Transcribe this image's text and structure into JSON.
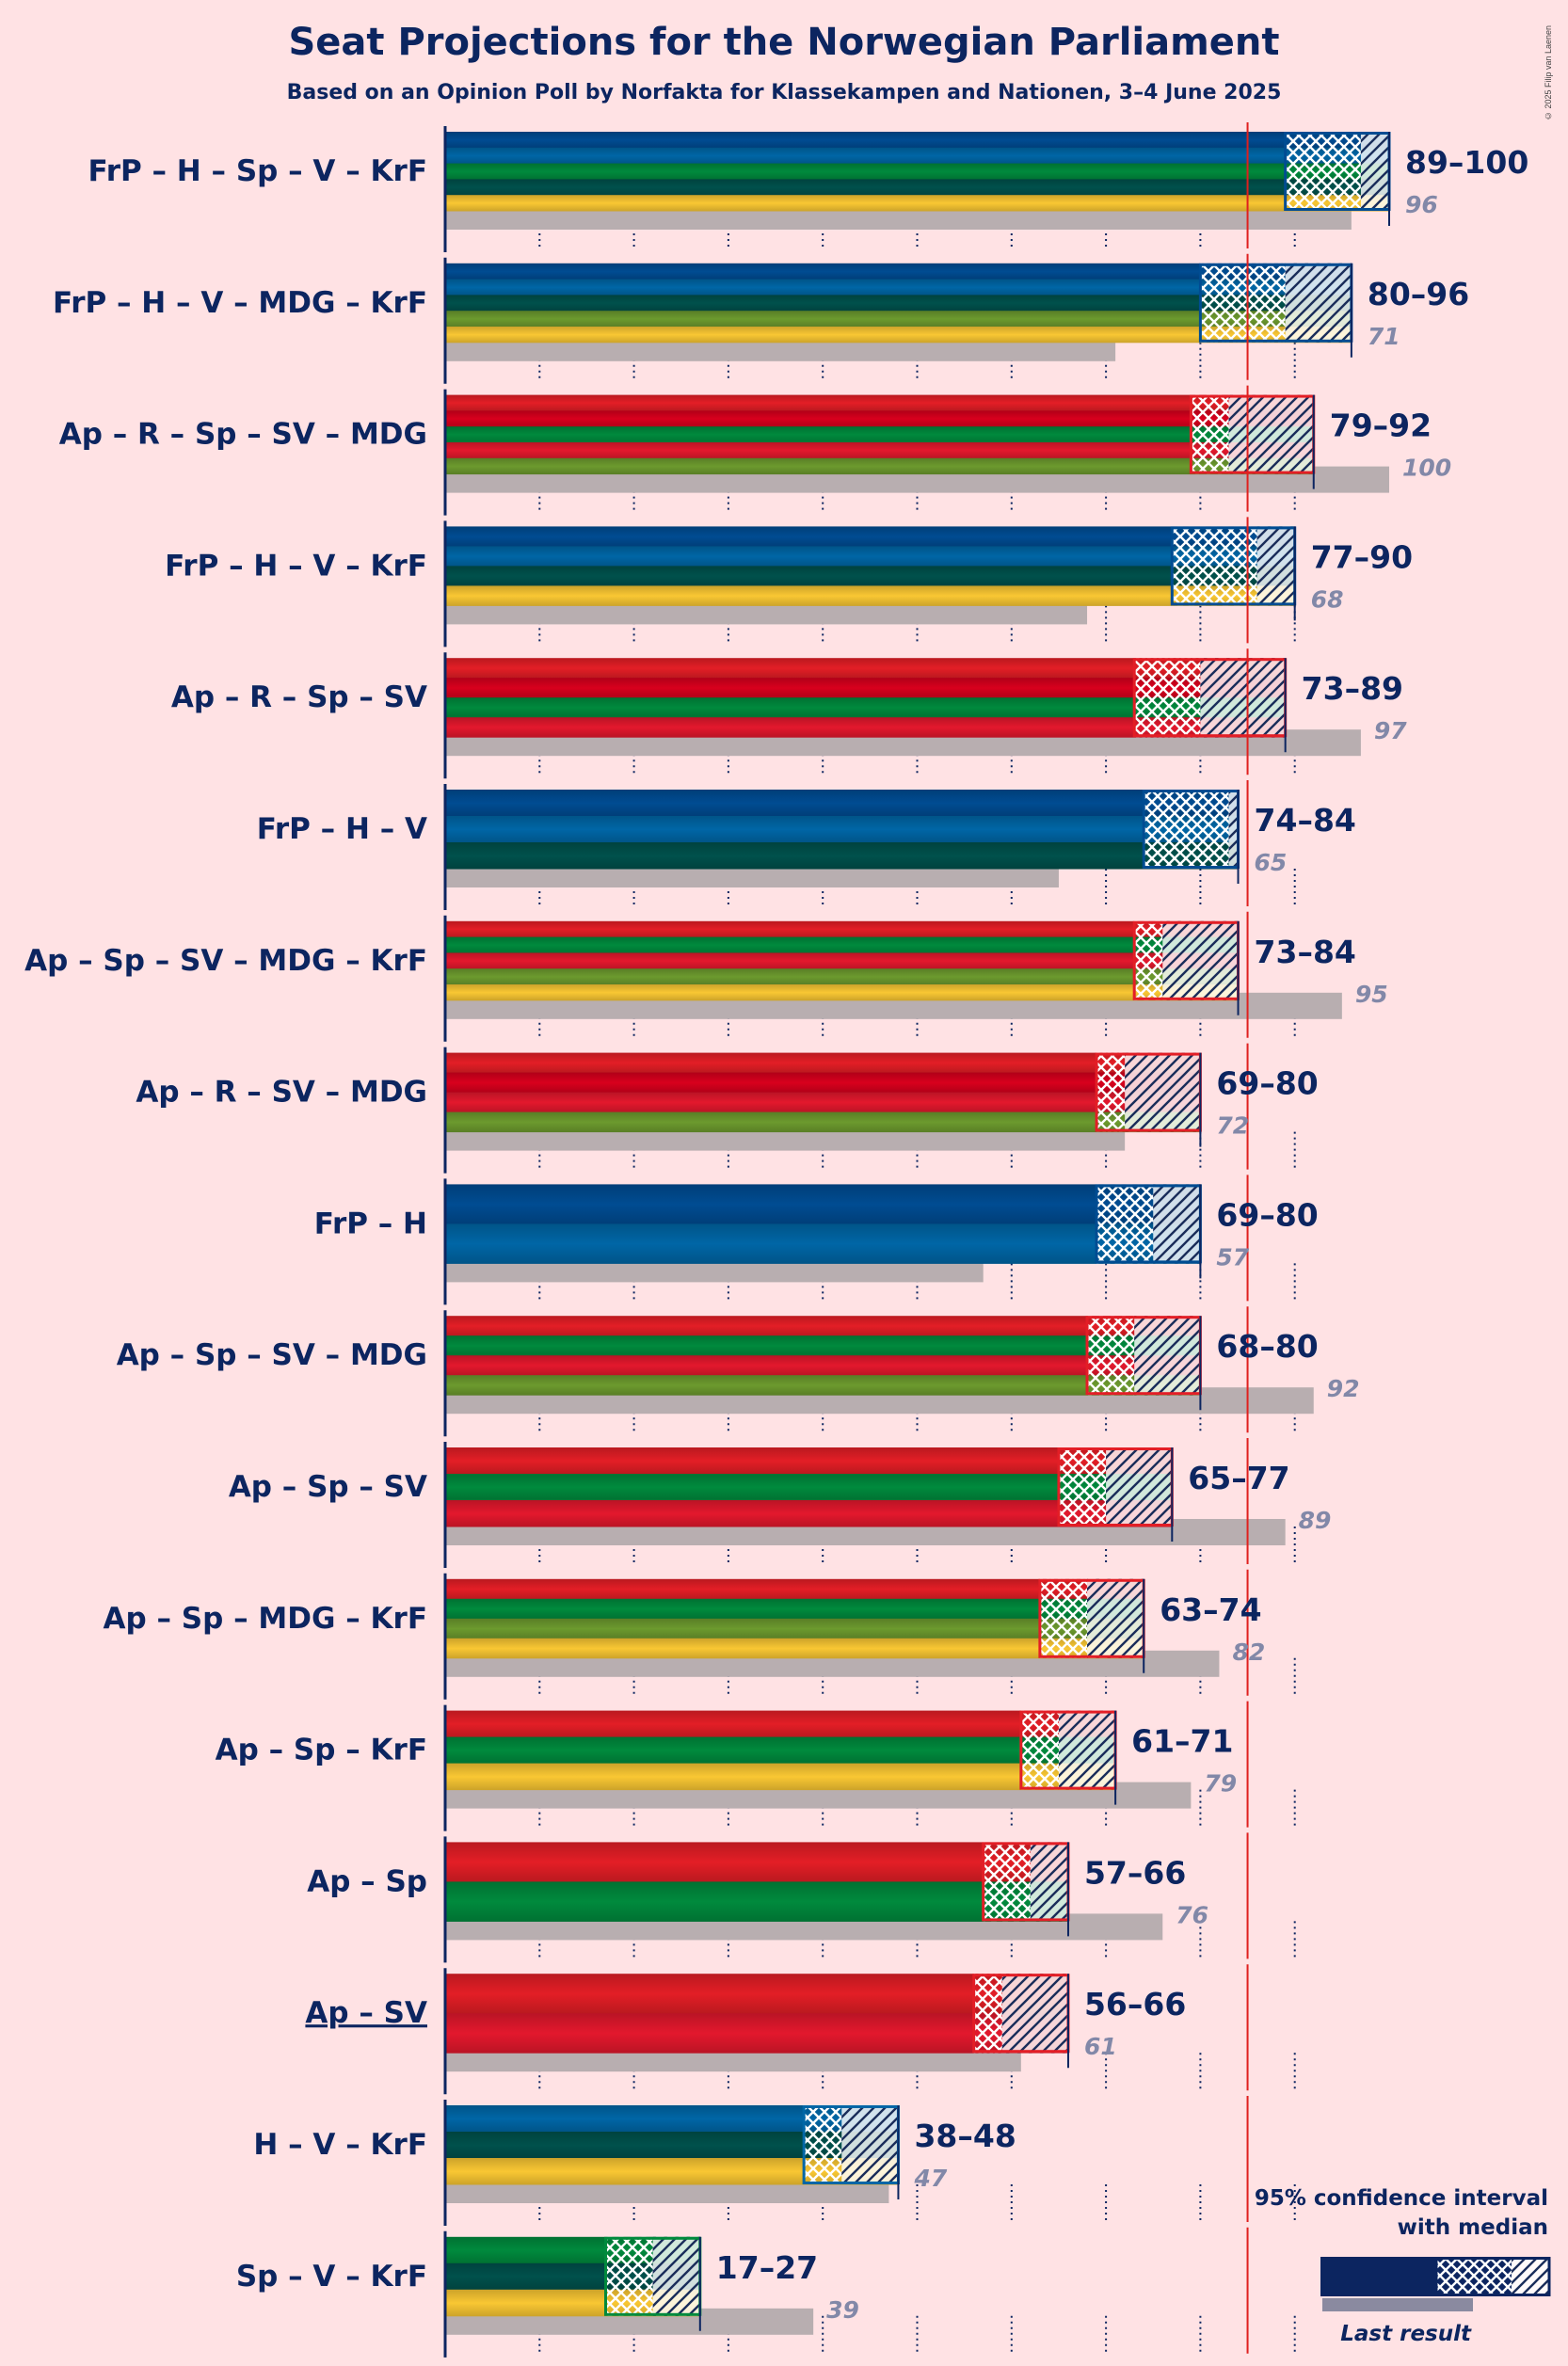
{
  "title": "Seat Projections for the Norwegian Parliament",
  "subtitle": "Based on an Opinion Poll by Norfakta for Klassekampen and Nationen, 3–4 June 2025",
  "copyright": "© 2025 Filip van Laenen",
  "colors": {
    "background": "#ffe2e4",
    "text": "#0c2560",
    "last_result": "#b8aeb0",
    "majority_line": "#e0201e",
    "parties": {
      "FrP": "#004c92",
      "H": "#0066a6",
      "Sp": "#008a3d",
      "V": "#00514c",
      "KrF": "#f9c733",
      "MDG": "#6c9a2e",
      "Ap": "#e31e26",
      "R": "#d8001d",
      "SV": "#e3182d"
    }
  },
  "chart_data": {
    "type": "bar",
    "orientation": "horizontal",
    "title": "Seat Projections for the Norwegian Parliament",
    "subtitle": "Based on an Opinion Poll by Norfakta for Klassekampen and Nationen, 3–4 June 2025",
    "x_range": [
      0,
      100
    ],
    "majority": 85,
    "coalitions": [
      {
        "label": "FrP – H – Sp – V – KrF",
        "parties": [
          "FrP",
          "H",
          "Sp",
          "V",
          "KrF"
        ],
        "low": 89,
        "median": 97,
        "high": 100,
        "range_label": "89–100",
        "last": 96,
        "last_label": "96",
        "underlined": false
      },
      {
        "label": "FrP – H – V – MDG – KrF",
        "parties": [
          "FrP",
          "H",
          "V",
          "MDG",
          "KrF"
        ],
        "low": 80,
        "median": 89,
        "high": 96,
        "range_label": "80–96",
        "last": 71,
        "last_label": "71",
        "underlined": false
      },
      {
        "label": "Ap – R – Sp – SV – MDG",
        "parties": [
          "Ap",
          "R",
          "Sp",
          "SV",
          "MDG"
        ],
        "low": 79,
        "median": 83,
        "high": 92,
        "range_label": "79–92",
        "last": 100,
        "last_label": "100",
        "underlined": false
      },
      {
        "label": "FrP – H – V – KrF",
        "parties": [
          "FrP",
          "H",
          "V",
          "KrF"
        ],
        "low": 77,
        "median": 86,
        "high": 90,
        "range_label": "77–90",
        "last": 68,
        "last_label": "68",
        "underlined": false
      },
      {
        "label": "Ap – R – Sp – SV",
        "parties": [
          "Ap",
          "R",
          "Sp",
          "SV"
        ],
        "low": 73,
        "median": 80,
        "high": 89,
        "range_label": "73–89",
        "last": 97,
        "last_label": "97",
        "underlined": false
      },
      {
        "label": "FrP – H – V",
        "parties": [
          "FrP",
          "H",
          "V"
        ],
        "low": 74,
        "median": 83,
        "high": 84,
        "range_label": "74–84",
        "last": 65,
        "last_label": "65",
        "underlined": false
      },
      {
        "label": "Ap – Sp – SV – MDG – KrF",
        "parties": [
          "Ap",
          "Sp",
          "SV",
          "MDG",
          "KrF"
        ],
        "low": 73,
        "median": 76,
        "high": 84,
        "range_label": "73–84",
        "last": 95,
        "last_label": "95",
        "underlined": false
      },
      {
        "label": "Ap – R – SV – MDG",
        "parties": [
          "Ap",
          "R",
          "SV",
          "MDG"
        ],
        "low": 69,
        "median": 72,
        "high": 80,
        "range_label": "69–80",
        "last": 72,
        "last_label": "72",
        "underlined": false
      },
      {
        "label": "FrP – H",
        "parties": [
          "FrP",
          "H"
        ],
        "low": 69,
        "median": 75,
        "high": 80,
        "range_label": "69–80",
        "last": 57,
        "last_label": "57",
        "underlined": false
      },
      {
        "label": "Ap – Sp – SV – MDG",
        "parties": [
          "Ap",
          "Sp",
          "SV",
          "MDG"
        ],
        "low": 68,
        "median": 73,
        "high": 80,
        "range_label": "68–80",
        "last": 92,
        "last_label": "92",
        "underlined": false
      },
      {
        "label": "Ap – Sp – SV",
        "parties": [
          "Ap",
          "Sp",
          "SV"
        ],
        "low": 65,
        "median": 70,
        "high": 77,
        "range_label": "65–77",
        "last": 89,
        "last_label": "89",
        "underlined": false
      },
      {
        "label": "Ap – Sp – MDG – KrF",
        "parties": [
          "Ap",
          "Sp",
          "MDG",
          "KrF"
        ],
        "low": 63,
        "median": 68,
        "high": 74,
        "range_label": "63–74",
        "last": 82,
        "last_label": "82",
        "underlined": false
      },
      {
        "label": "Ap – Sp – KrF",
        "parties": [
          "Ap",
          "Sp",
          "KrF"
        ],
        "low": 61,
        "median": 65,
        "high": 71,
        "range_label": "61–71",
        "last": 79,
        "last_label": "79",
        "underlined": false
      },
      {
        "label": "Ap – Sp",
        "parties": [
          "Ap",
          "Sp"
        ],
        "low": 57,
        "median": 62,
        "high": 66,
        "range_label": "57–66",
        "last": 76,
        "last_label": "76",
        "underlined": false
      },
      {
        "label": "Ap – SV",
        "parties": [
          "Ap",
          "SV"
        ],
        "low": 56,
        "median": 59,
        "high": 66,
        "range_label": "56–66",
        "last": 61,
        "last_label": "61",
        "underlined": true
      },
      {
        "label": "H – V – KrF",
        "parties": [
          "H",
          "V",
          "KrF"
        ],
        "low": 38,
        "median": 42,
        "high": 48,
        "range_label": "38–48",
        "last": 47,
        "last_label": "47",
        "underlined": false
      },
      {
        "label": "Sp – V – KrF",
        "parties": [
          "Sp",
          "V",
          "KrF"
        ],
        "low": 17,
        "median": 22,
        "high": 27,
        "range_label": "17–27",
        "last": 39,
        "last_label": "39",
        "underlined": false
      }
    ],
    "legend": {
      "title_line1": "95% confidence interval",
      "title_line2": "with median",
      "last_result": "Last result"
    }
  }
}
